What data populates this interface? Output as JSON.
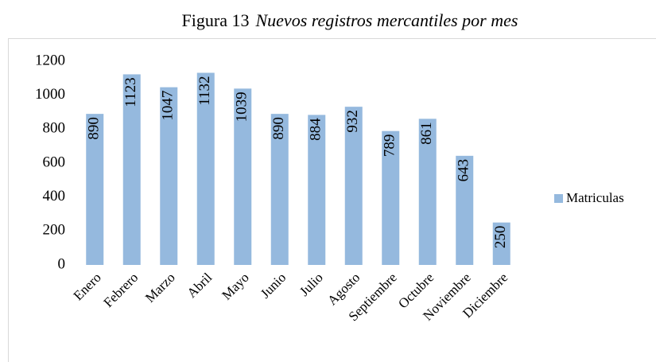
{
  "chart_data": {
    "type": "bar",
    "figure_label": "Figura 13",
    "title": "Nuevos registros mercantiles por mes",
    "categories": [
      "Enero",
      "Febrero",
      "Marzo",
      "Abril",
      "Mayo",
      "Junio",
      "Julio",
      "Agosto",
      "Septiembre",
      "Octubre",
      "Noviembre",
      "Diciembre"
    ],
    "series": [
      {
        "name": "Matriculas",
        "color": "#95b9de",
        "values": [
          890,
          1123,
          1047,
          1132,
          1039,
          890,
          884,
          932,
          789,
          861,
          643,
          250
        ]
      }
    ],
    "ylim": [
      0,
      1200
    ],
    "yticks": [
      0,
      200,
      400,
      600,
      800,
      1000,
      1200
    ],
    "grid": false,
    "legend": "right",
    "data_labels": true
  }
}
